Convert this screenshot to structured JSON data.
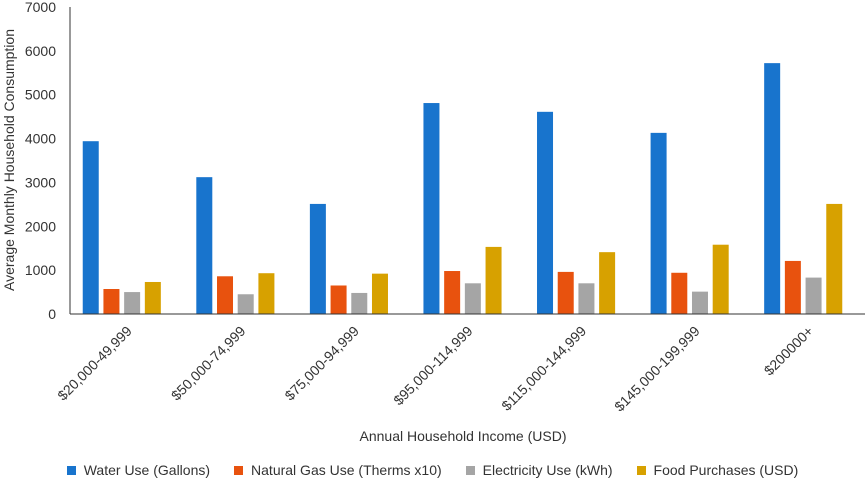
{
  "chart_data": {
    "type": "bar",
    "title": "",
    "xlabel": "Annual Household Income (USD)",
    "ylabel": "Average Monthly Household Consumption",
    "ylim": [
      0,
      7000
    ],
    "yticks": [
      0,
      1000,
      2000,
      3000,
      4000,
      5000,
      6000,
      7000
    ],
    "categories": [
      "$20,000-49,999",
      "$50,000-74,999",
      "$75,000-94,999",
      "$95,000-114,999",
      "$115,000-144,999",
      "$145,000-199,999",
      "$200000+"
    ],
    "series": [
      {
        "name": "Water Use (Gallons)",
        "color": "#1874CD",
        "values": [
          3940,
          3120,
          2510,
          4810,
          4610,
          4130,
          5720
        ]
      },
      {
        "name": "Natural Gas Use (Therms x10)",
        "color": "#E8520E",
        "values": [
          570,
          860,
          650,
          980,
          960,
          940,
          1210
        ]
      },
      {
        "name": "Electricity Use (kWh)",
        "color": "#A5A5A5",
        "values": [
          500,
          450,
          480,
          700,
          700,
          510,
          830
        ]
      },
      {
        "name": "Food Purchases (USD)",
        "color": "#D7A100",
        "values": [
          730,
          930,
          920,
          1530,
          1410,
          1580,
          2510
        ]
      }
    ],
    "legend_position": "bottom"
  }
}
